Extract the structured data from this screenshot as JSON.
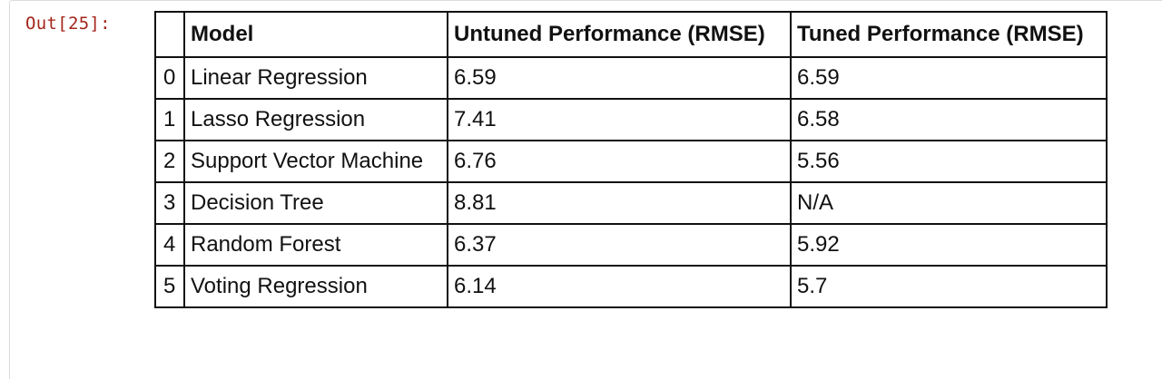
{
  "prompt": "Out[25]:",
  "table": {
    "columns": [
      "",
      "Model",
      "Untuned Performance (RMSE)",
      "Tuned Performance (RMSE)"
    ],
    "rows": [
      [
        "0",
        "Linear Regression",
        "6.59",
        "6.59"
      ],
      [
        "1",
        "Lasso Regression",
        "7.41",
        "6.58"
      ],
      [
        "2",
        "Support Vector Machine",
        "6.76",
        "5.56"
      ],
      [
        "3",
        "Decision Tree",
        "8.81",
        "N/A"
      ],
      [
        "4",
        "Random Forest",
        "6.37",
        "5.92"
      ],
      [
        "5",
        "Voting Regression",
        "6.14",
        "5.7"
      ]
    ]
  }
}
